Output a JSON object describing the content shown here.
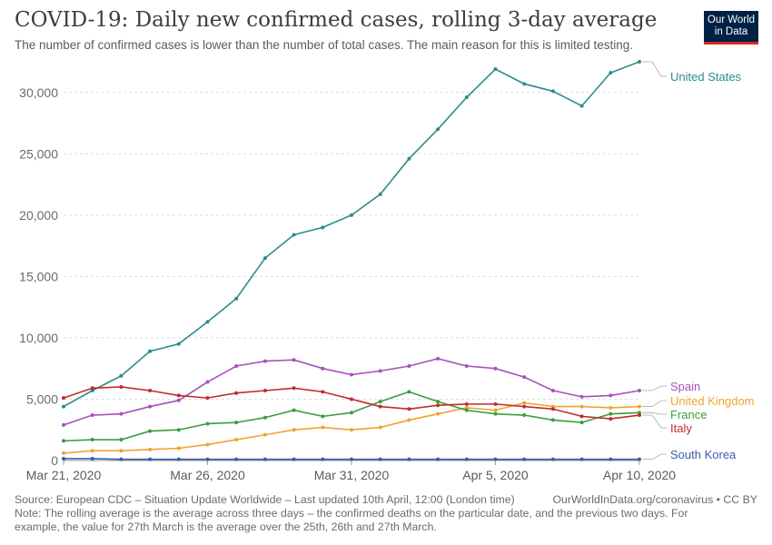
{
  "header": {
    "title": "COVID-19: Daily new confirmed cases, rolling 3-day average",
    "subtitle": "The number of confirmed cases is lower than the number of total cases. The main reason for this is limited testing."
  },
  "logo": {
    "line1": "Our World",
    "line2": "in Data",
    "bg_color": "#002147",
    "accent_color": "#d42b21"
  },
  "footer": {
    "source": "Source: European CDC – Situation Update Worldwide – Last updated 10th April, 12:00 (London time)",
    "link": "OurWorldInData.org/coronavirus • CC BY",
    "note_line1": "Note: The rolling average is the average across three days – the confirmed deaths on the particular date, and the previous two days. For",
    "note_line2": "example, the value for 27th March is the average over the 25th, 26th and 27th March."
  },
  "chart_data": {
    "type": "line",
    "title": "COVID-19: Daily new confirmed cases, rolling 3-day average",
    "x": [
      "Mar 21",
      "Mar 22",
      "Mar 23",
      "Mar 24",
      "Mar 25",
      "Mar 26",
      "Mar 27",
      "Mar 28",
      "Mar 29",
      "Mar 30",
      "Mar 31",
      "Apr 1",
      "Apr 2",
      "Apr 3",
      "Apr 4",
      "Apr 5",
      "Apr 6",
      "Apr 7",
      "Apr 8",
      "Apr 9",
      "Apr 10"
    ],
    "x_tick_labels": [
      "Mar 21, 2020",
      "Mar 26, 2020",
      "Mar 31, 2020",
      "Apr 5, 2020",
      "Apr 10, 2020"
    ],
    "x_tick_indices": [
      0,
      5,
      10,
      15,
      20
    ],
    "y_ticks": [
      0,
      5000,
      10000,
      15000,
      20000,
      25000,
      30000
    ],
    "y_tick_labels": [
      "0",
      "5,000",
      "10,000",
      "15,000",
      "20,000",
      "25,000",
      "30,000"
    ],
    "ylim": [
      0,
      32500
    ],
    "grid": "horizontal dashed",
    "legend": "right, labels at line ends",
    "series": [
      {
        "name": "United States",
        "color": "#2c8c8c",
        "values": [
          4400,
          5700,
          6900,
          8900,
          9500,
          11300,
          13200,
          16500,
          18400,
          19000,
          20000,
          21700,
          24600,
          27000,
          29600,
          31900,
          30700,
          30100,
          28900,
          31600,
          32500
        ]
      },
      {
        "name": "Spain",
        "color": "#a652ba",
        "values": [
          2900,
          3700,
          3800,
          4400,
          4900,
          6400,
          7700,
          8100,
          8200,
          7500,
          7000,
          7300,
          7700,
          8300,
          7700,
          7500,
          6800,
          5700,
          5200,
          5300,
          5700
        ]
      },
      {
        "name": "United Kingdom",
        "color": "#f2a230",
        "values": [
          600,
          800,
          800,
          900,
          1000,
          1300,
          1700,
          2100,
          2500,
          2700,
          2500,
          2700,
          3300,
          3800,
          4300,
          4100,
          4700,
          4400,
          4400,
          4300,
          4400
        ]
      },
      {
        "name": "France",
        "color": "#3c9d3b",
        "values": [
          1600,
          1700,
          1700,
          2400,
          2500,
          3000,
          3100,
          3500,
          4100,
          3600,
          3900,
          4800,
          5600,
          4800,
          4100,
          3800,
          3700,
          3300,
          3100,
          3800,
          3900
        ]
      },
      {
        "name": "Italy",
        "color": "#c32b2b",
        "values": [
          5100,
          5900,
          6000,
          5700,
          5300,
          5100,
          5500,
          5700,
          5900,
          5600,
          5000,
          4400,
          4200,
          4500,
          4600,
          4600,
          4400,
          4200,
          3600,
          3400,
          3700
        ]
      },
      {
        "name": "South Korea",
        "color": "#3a5ea8",
        "values": [
          150,
          150,
          100,
          100,
          100,
          100,
          100,
          100,
          100,
          100,
          100,
          100,
          100,
          100,
          100,
          100,
          100,
          100,
          100,
          100,
          100
        ]
      }
    ]
  }
}
